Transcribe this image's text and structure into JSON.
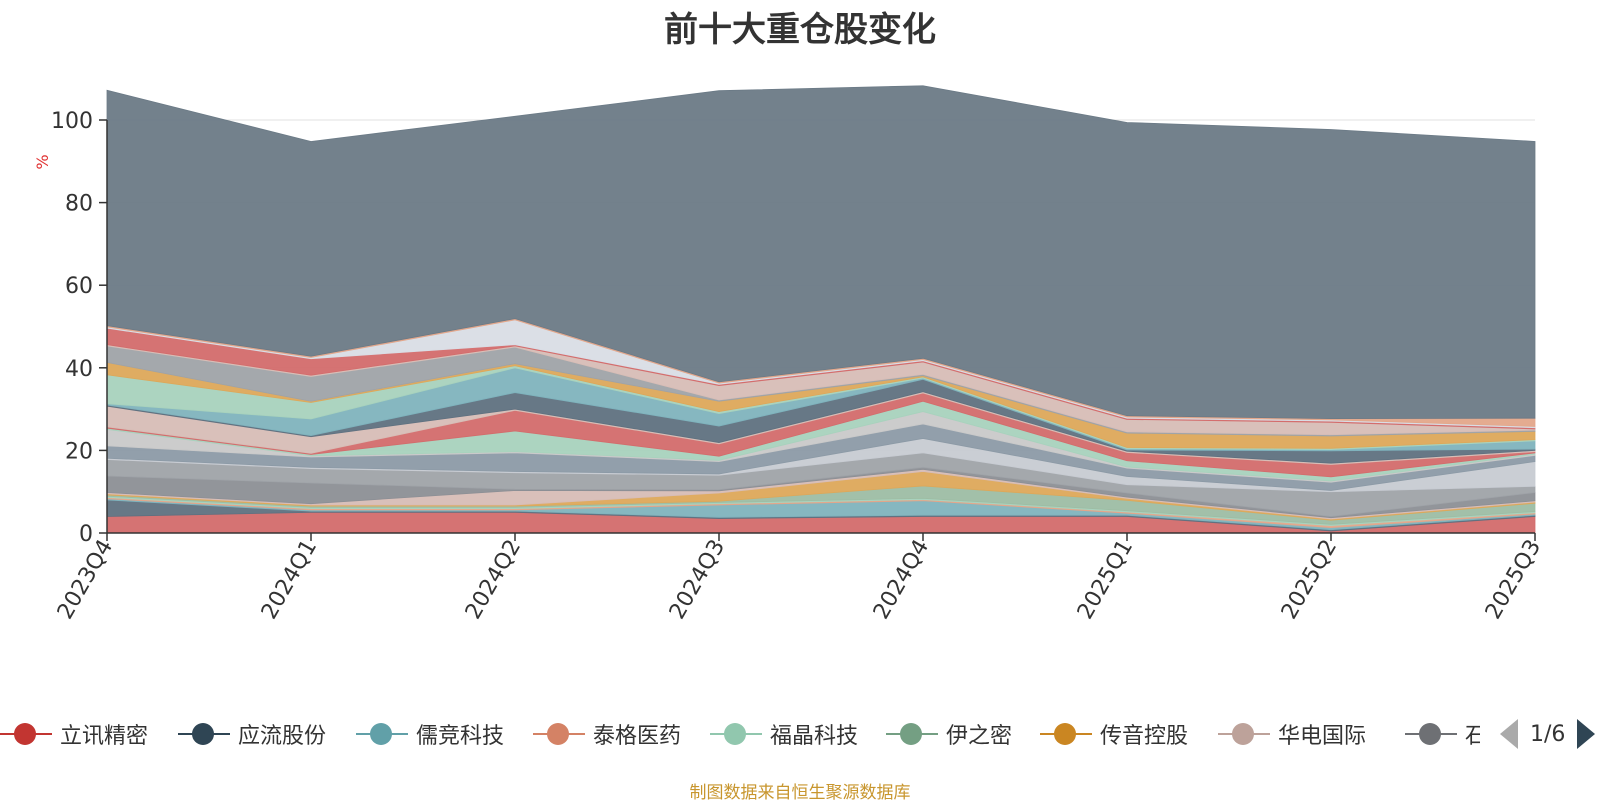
{
  "chart_data": {
    "type": "area",
    "stacked": true,
    "title": "前十大重仓股变化",
    "ylabel": "%",
    "ylim": [
      0,
      100
    ],
    "yticks": [
      0,
      20,
      40,
      60,
      80,
      100
    ],
    "grid": true,
    "categories": [
      "2023Q4",
      "2024Q1",
      "2024Q2",
      "2024Q3",
      "2024Q4",
      "2025Q1",
      "2025Q2",
      "2025Q3"
    ],
    "series": [
      {
        "name": "立讯精密",
        "color": "#d36c6c",
        "values": [
          4.0,
          5.0,
          5.0,
          3.5,
          4.0,
          4.0,
          0.5,
          4.0
        ]
      },
      {
        "name": "应流股份",
        "color": "#5f7180",
        "values": [
          4.0,
          0.3,
          0.3,
          0.3,
          0.3,
          0.3,
          0.3,
          0.3
        ]
      },
      {
        "name": "儒竞科技",
        "color": "#7fb3bd",
        "values": [
          0.3,
          0.3,
          0.3,
          3.0,
          3.5,
          0.5,
          0.5,
          0.3
        ]
      },
      {
        "name": "泰格医药",
        "color": "#e3a68a",
        "values": [
          0.3,
          0.3,
          0.3,
          0.3,
          0.3,
          0.3,
          0.5,
          0.3
        ]
      },
      {
        "name": "福晶科技",
        "color": "#a8d2bd",
        "values": [
          0.3,
          0.3,
          0.3,
          0.3,
          0.3,
          0.3,
          0.3,
          0.3
        ]
      },
      {
        "name": "伊之密",
        "color": "#9dbda4",
        "values": [
          0.3,
          0.3,
          0.3,
          0.3,
          3.0,
          2.5,
          1.0,
          2.0
        ]
      },
      {
        "name": "传音控股",
        "color": "#dda85a",
        "values": [
          0.3,
          0.3,
          0.3,
          2.0,
          3.5,
          0.5,
          0.3,
          0.3
        ]
      },
      {
        "name": "华电国际",
        "color": "#d7bdb6",
        "values": [
          0.3,
          0.3,
          3.5,
          0.5,
          0.5,
          0.3,
          0.3,
          0.3
        ]
      },
      {
        "name": "石头科技",
        "color": "#8c8f95",
        "values": [
          4.0,
          5.0,
          0.3,
          0.3,
          0.5,
          1.0,
          0.3,
          2.0
        ]
      },
      {
        "name": "",
        "color": "#9fa3a8",
        "values": [
          4.0,
          3.5,
          4.0,
          3.5,
          3.5,
          2.0,
          6.0,
          1.5
        ]
      },
      {
        "name": "",
        "color": "#c7cbd2",
        "values": [
          0.3,
          0.3,
          0.3,
          0.3,
          3.5,
          2.0,
          0.3,
          6.0
        ]
      },
      {
        "name": "",
        "color": "#8c9aa6",
        "values": [
          3.0,
          2.5,
          4.5,
          3.0,
          3.5,
          2.0,
          2.0,
          1.5
        ]
      },
      {
        "name": "",
        "color": "#c9c9c9",
        "values": [
          4.0,
          0.3,
          0.3,
          0.3,
          3.0,
          0.3,
          0.3,
          0.3
        ]
      },
      {
        "name": "",
        "color": "#a8d2bd",
        "values": [
          0.3,
          0.3,
          5.0,
          1.0,
          2.5,
          1.5,
          1.0,
          0.3
        ]
      },
      {
        "name": "",
        "color": "#d36c6c",
        "values": [
          0.3,
          0.3,
          5.0,
          3.0,
          2.0,
          2.0,
          3.0,
          0.3
        ]
      },
      {
        "name": "",
        "color": "#d7bdb6",
        "values": [
          5.0,
          4.0,
          0.3,
          0.3,
          0.3,
          0.3,
          0.3,
          0.3
        ]
      },
      {
        "name": "",
        "color": "#5f7180",
        "values": [
          0.3,
          0.3,
          4.0,
          4.0,
          3.0,
          0.3,
          3.0,
          0.3
        ]
      },
      {
        "name": "",
        "color": "#7fb3bd",
        "values": [
          0.3,
          4.0,
          6.0,
          3.0,
          0.3,
          0.3,
          0.3,
          2.0
        ]
      },
      {
        "name": "",
        "color": "#a8d2bd",
        "values": [
          7.0,
          4.0,
          0.5,
          0.5,
          0.3,
          0.3,
          0.3,
          0.3
        ]
      },
      {
        "name": "",
        "color": "#dda85a",
        "values": [
          3.0,
          0.3,
          0.5,
          2.5,
          0.3,
          3.5,
          3.0,
          2.0
        ]
      },
      {
        "name": "",
        "color": "#9fa3a8",
        "values": [
          4.0,
          6.0,
          4.0,
          0.3,
          0.3,
          0.3,
          0.3,
          0.3
        ]
      },
      {
        "name": "",
        "color": "#d7bdb6",
        "values": [
          0.3,
          0.3,
          0.3,
          3.5,
          3.0,
          3.0,
          3.0,
          0.3
        ]
      },
      {
        "name": "",
        "color": "#d36c6c",
        "values": [
          4.0,
          4.0,
          0.3,
          0.3,
          0.3,
          0.3,
          0.3,
          0.3
        ]
      },
      {
        "name": "",
        "color": "#d9dde5",
        "values": [
          0.3,
          0.3,
          6.0,
          0.3,
          0.3,
          0.3,
          0.3,
          0.3
        ]
      },
      {
        "name": "",
        "color": "#e3a68a",
        "values": [
          0.3,
          0.3,
          0.3,
          0.3,
          0.3,
          0.3,
          0.3,
          2.0
        ]
      },
      {
        "name": "",
        "color": "#6b7a86",
        "values": [
          57.0,
          52.0,
          49.0,
          70.5,
          66.0,
          71.0,
          70.0,
          67.0
        ]
      }
    ],
    "legend": {
      "position": "bottom",
      "items": [
        {
          "name": "立讯精密",
          "color": "#c23531"
        },
        {
          "name": "应流股份",
          "color": "#2f4554"
        },
        {
          "name": "儒竞科技",
          "color": "#61a0a8"
        },
        {
          "name": "泰格医药",
          "color": "#d48265"
        },
        {
          "name": "福晶科技",
          "color": "#91c7ae"
        },
        {
          "name": "伊之密",
          "color": "#749f83"
        },
        {
          "name": "传音控股",
          "color": "#ca8622"
        },
        {
          "name": "华电国际",
          "color": "#bda29a"
        },
        {
          "name": "石头科技",
          "color": "#6e7074"
        }
      ],
      "page": "1/6"
    },
    "source": "制图数据来自恒生聚源数据库"
  }
}
